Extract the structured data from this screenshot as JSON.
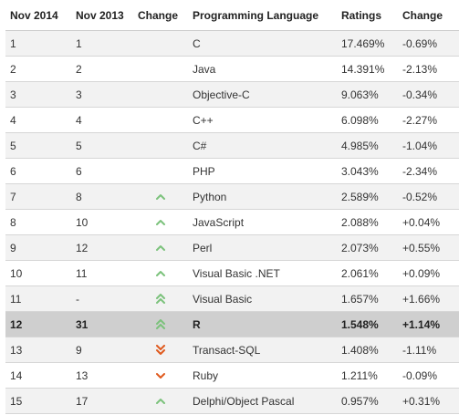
{
  "headers": [
    "Nov 2014",
    "Nov 2013",
    "Change",
    "Programming Language",
    "Ratings",
    "Change"
  ],
  "colors": {
    "up": "#7cc27c",
    "down": "#e05a1e",
    "row_alt": "#f2f2f2",
    "row_highlight": "#cfcfcf"
  },
  "rows": [
    {
      "rank_2014": "1",
      "rank_2013": "1",
      "trend": "none",
      "language": "C",
      "rating": "17.469%",
      "change": "-0.69%"
    },
    {
      "rank_2014": "2",
      "rank_2013": "2",
      "trend": "none",
      "language": "Java",
      "rating": "14.391%",
      "change": "-2.13%"
    },
    {
      "rank_2014": "3",
      "rank_2013": "3",
      "trend": "none",
      "language": "Objective-C",
      "rating": "9.063%",
      "change": "-0.34%"
    },
    {
      "rank_2014": "4",
      "rank_2013": "4",
      "trend": "none",
      "language": "C++",
      "rating": "6.098%",
      "change": "-2.27%"
    },
    {
      "rank_2014": "5",
      "rank_2013": "5",
      "trend": "none",
      "language": "C#",
      "rating": "4.985%",
      "change": "-1.04%"
    },
    {
      "rank_2014": "6",
      "rank_2013": "6",
      "trend": "none",
      "language": "PHP",
      "rating": "3.043%",
      "change": "-2.34%"
    },
    {
      "rank_2014": "7",
      "rank_2013": "8",
      "trend": "up",
      "language": "Python",
      "rating": "2.589%",
      "change": "-0.52%"
    },
    {
      "rank_2014": "8",
      "rank_2013": "10",
      "trend": "up",
      "language": "JavaScript",
      "rating": "2.088%",
      "change": "+0.04%"
    },
    {
      "rank_2014": "9",
      "rank_2013": "12",
      "trend": "up",
      "language": "Perl",
      "rating": "2.073%",
      "change": "+0.55%"
    },
    {
      "rank_2014": "10",
      "rank_2013": "11",
      "trend": "up",
      "language": "Visual Basic .NET",
      "rating": "2.061%",
      "change": "+0.09%"
    },
    {
      "rank_2014": "11",
      "rank_2013": "-",
      "trend": "up-double",
      "language": "Visual Basic",
      "rating": "1.657%",
      "change": "+1.66%"
    },
    {
      "rank_2014": "12",
      "rank_2013": "31",
      "trend": "up-double",
      "language": "R",
      "rating": "1.548%",
      "change": "+1.14%",
      "highlight": true
    },
    {
      "rank_2014": "13",
      "rank_2013": "9",
      "trend": "down-double",
      "language": "Transact-SQL",
      "rating": "1.408%",
      "change": "-1.11%"
    },
    {
      "rank_2014": "14",
      "rank_2013": "13",
      "trend": "down",
      "language": "Ruby",
      "rating": "1.211%",
      "change": "-0.09%"
    },
    {
      "rank_2014": "15",
      "rank_2013": "17",
      "trend": "up",
      "language": "Delphi/Object Pascal",
      "rating": "0.957%",
      "change": "+0.31%"
    }
  ]
}
